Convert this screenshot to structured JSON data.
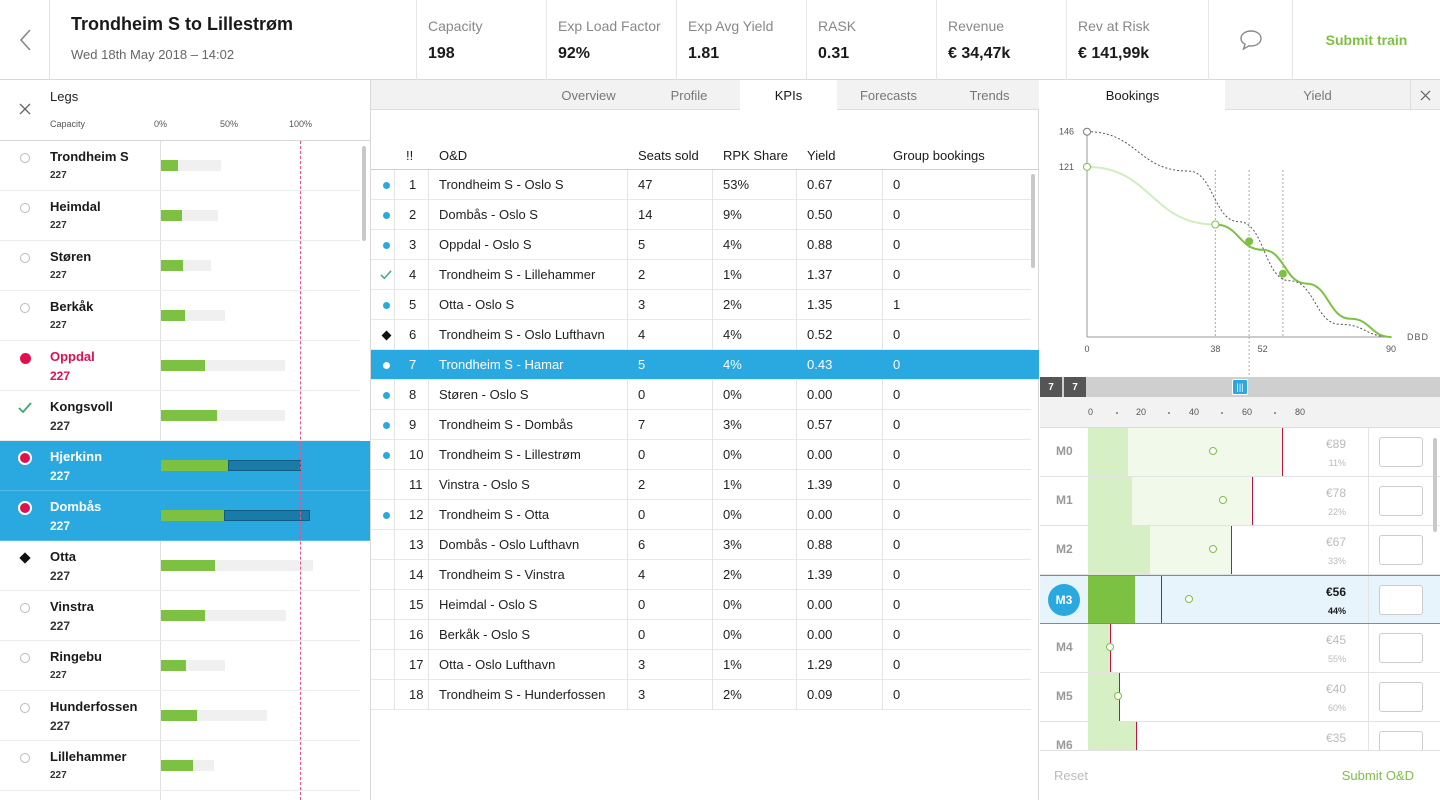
{
  "header": {
    "title": "Trondheim S to Lillestrøm",
    "date": "Wed 18th May 2018 – 14:02",
    "kpis": [
      {
        "label": "Capacity",
        "value": "198"
      },
      {
        "label": "Exp Load Factor",
        "value": "92%"
      },
      {
        "label": "Exp Avg Yield",
        "value": "1.81"
      },
      {
        "label": "RASK",
        "value": "0.31"
      },
      {
        "label": "Revenue",
        "value": "€ 34,47k"
      },
      {
        "label": "Rev at Risk",
        "value": "€ 141,99k"
      }
    ],
    "submit_label": "Submit train",
    "icons": {
      "back": "chevron-left-icon",
      "comment": "speech-bubble-icon"
    }
  },
  "legs": {
    "title": "Legs",
    "capacity_label": "Capacity",
    "scale": [
      "0%",
      "50%",
      "100%"
    ],
    "colors": {
      "fill": "#7dc142",
      "selected": "#2aa8e0",
      "warning": "#e0104f",
      "overbook": "#1a7aa8"
    },
    "items": [
      {
        "name": "Trondheim S",
        "capacity": "227",
        "icon": "circle-outline",
        "state": "normal",
        "fill": 0.12,
        "track": 0.43
      },
      {
        "name": "Heimdal",
        "capacity": "227",
        "icon": "circle-outline",
        "state": "normal",
        "fill": 0.15,
        "track": 0.41
      },
      {
        "name": "Støren",
        "capacity": "227",
        "icon": "circle-outline",
        "state": "normal",
        "fill": 0.16,
        "track": 0.36
      },
      {
        "name": "Berkåk",
        "capacity": "227",
        "icon": "circle-outline",
        "state": "normal",
        "fill": 0.17,
        "track": 0.46
      },
      {
        "name": "Oppdal",
        "capacity": "227",
        "icon": "dot-red",
        "state": "red",
        "fill": 0.32,
        "track": 0.89
      },
      {
        "name": "Kongsvoll",
        "capacity": "227",
        "icon": "check",
        "state": "big",
        "fill": 0.4,
        "track": 0.89
      },
      {
        "name": "Hjerkinn",
        "capacity": "227",
        "icon": "dot-red-ring",
        "state": "sel",
        "fill": 0.48,
        "dark": 0.58
      },
      {
        "name": "Dombås",
        "capacity": "227",
        "icon": "dot-red-ring",
        "state": "sel",
        "fill": 0.45,
        "dark": 0.69
      },
      {
        "name": "Otta",
        "capacity": "227",
        "icon": "diamond",
        "state": "big",
        "fill": 0.39,
        "track": 1.09
      },
      {
        "name": "Vinstra",
        "capacity": "227",
        "icon": "circle-outline",
        "state": "big",
        "fill": 0.32,
        "track": 0.9
      },
      {
        "name": "Ringebu",
        "capacity": "227",
        "icon": "circle-outline",
        "state": "normal",
        "fill": 0.18,
        "track": 0.46
      },
      {
        "name": "Hunderfossen",
        "capacity": "227",
        "icon": "circle-outline",
        "state": "big",
        "fill": 0.26,
        "track": 0.76
      },
      {
        "name": "Lillehammer",
        "capacity": "227",
        "icon": "circle-outline",
        "state": "normal",
        "fill": 0.23,
        "track": 0.38
      }
    ]
  },
  "tabs": [
    {
      "label": "Overview"
    },
    {
      "label": "Profile"
    },
    {
      "label": "KPIs",
      "active": true
    },
    {
      "label": "Forecasts"
    },
    {
      "label": "Trends"
    }
  ],
  "table": {
    "headers": {
      "flag": "!!",
      "od": "O&D",
      "seats": "Seats sold",
      "rpk": "RPK Share",
      "yield": "Yield",
      "group": "Group bookings"
    },
    "rows": [
      {
        "ind": "dot",
        "n": "1",
        "od": "Trondheim S - Oslo S",
        "seats": "47",
        "rpk": "53%",
        "yield": "0.67",
        "group": "0"
      },
      {
        "ind": "dot",
        "n": "2",
        "od": "Dombås - Oslo S",
        "seats": "14",
        "rpk": "9%",
        "yield": "0.50",
        "group": "0"
      },
      {
        "ind": "dot",
        "n": "3",
        "od": "Oppdal - Oslo S",
        "seats": "5",
        "rpk": "4%",
        "yield": "0.88",
        "group": "0"
      },
      {
        "ind": "check",
        "n": "4",
        "od": "Trondheim S - Lillehammer",
        "seats": "2",
        "rpk": "1%",
        "yield": "1.37",
        "group": "0"
      },
      {
        "ind": "dot",
        "n": "5",
        "od": "Otta - Oslo S",
        "seats": "3",
        "rpk": "2%",
        "yield": "1.35",
        "group": "1"
      },
      {
        "ind": "diamond",
        "n": "6",
        "od": "Trondheim S - Oslo Lufthavn",
        "seats": "4",
        "rpk": "4%",
        "yield": "0.52",
        "group": "0"
      },
      {
        "ind": "dot",
        "n": "7",
        "od": "Trondheim S - Hamar",
        "seats": "5",
        "rpk": "4%",
        "yield": "0.43",
        "group": "0",
        "selected": true
      },
      {
        "ind": "dot",
        "n": "8",
        "od": "Støren - Oslo S",
        "seats": "0",
        "rpk": "0%",
        "yield": "0.00",
        "group": "0"
      },
      {
        "ind": "dot",
        "n": "9",
        "od": "Trondheim S - Dombås",
        "seats": "7",
        "rpk": "3%",
        "yield": "0.57",
        "group": "0"
      },
      {
        "ind": "dot",
        "n": "10",
        "od": "Trondheim S - Lillestrøm",
        "seats": "0",
        "rpk": "0%",
        "yield": "0.00",
        "group": "0"
      },
      {
        "ind": "",
        "n": "11",
        "od": "Vinstra - Oslo S",
        "seats": "2",
        "rpk": "1%",
        "yield": "1.39",
        "group": "0"
      },
      {
        "ind": "dot",
        "n": "12",
        "od": "Trondheim S - Otta",
        "seats": "0",
        "rpk": "0%",
        "yield": "0.00",
        "group": "0"
      },
      {
        "ind": "",
        "n": "13",
        "od": "Dombås - Oslo Lufthavn",
        "seats": "6",
        "rpk": "3%",
        "yield": "0.88",
        "group": "0"
      },
      {
        "ind": "",
        "n": "14",
        "od": "Trondheim S - Vinstra",
        "seats": "4",
        "rpk": "2%",
        "yield": "1.39",
        "group": "0"
      },
      {
        "ind": "",
        "n": "15",
        "od": "Heimdal - Oslo S",
        "seats": "0",
        "rpk": "0%",
        "yield": "0.00",
        "group": "0"
      },
      {
        "ind": "",
        "n": "16",
        "od": "Berkåk - Oslo S",
        "seats": "0",
        "rpk": "0%",
        "yield": "0.00",
        "group": "0"
      },
      {
        "ind": "",
        "n": "17",
        "od": "Otta - Oslo Lufthavn",
        "seats": "3",
        "rpk": "1%",
        "yield": "1.29",
        "group": "0"
      },
      {
        "ind": "",
        "n": "18",
        "od": "Trondheim S - Hunderfossen",
        "seats": "3",
        "rpk": "2%",
        "yield": "0.09",
        "group": "0"
      }
    ]
  },
  "right": {
    "tabs": [
      {
        "label": "Bookings",
        "active": true
      },
      {
        "label": "Yield"
      }
    ],
    "chart_data": {
      "type": "line",
      "xlabel": "DBD",
      "xticks": [
        "0",
        "38",
        "52",
        "90"
      ],
      "yticks": [
        "146",
        "121"
      ],
      "xlim": [
        0,
        90
      ],
      "ylim": [
        0,
        160
      ],
      "series": [
        {
          "style": "dotted",
          "points": [
            [
              0,
              146
            ],
            [
              30,
              118
            ],
            [
              45,
              82
            ],
            [
              60,
              40
            ],
            [
              75,
              9
            ],
            [
              90,
              0
            ]
          ]
        },
        {
          "style": "green",
          "points": [
            [
              0,
              121
            ],
            [
              38,
              80
            ],
            [
              52,
              62
            ],
            [
              65,
              38
            ],
            [
              78,
              13
            ],
            [
              90,
              0
            ]
          ]
        }
      ],
      "markers": [
        {
          "x": 0,
          "y": 146,
          "kind": "grey-open"
        },
        {
          "x": 0,
          "y": 121,
          "kind": "green-open"
        },
        {
          "x": 38,
          "y": 80,
          "kind": "green-open"
        },
        {
          "x": 48,
          "y": 68,
          "kind": "green-filled"
        },
        {
          "x": 58,
          "y": 45,
          "kind": "green-filled"
        }
      ],
      "guides": [
        38,
        48,
        58
      ]
    },
    "dbd": {
      "left": [
        "7",
        "7"
      ],
      "handle_label": "|||",
      "position": 0.5
    },
    "scale": [
      "0",
      "20",
      "40",
      "60",
      "80"
    ],
    "classes": [
      {
        "name": "M0",
        "price": "€89",
        "pct": "11%",
        "light": 194,
        "green": 40,
        "redline": 194,
        "circle": 125
      },
      {
        "name": "M1",
        "price": "€78",
        "pct": "22%",
        "light": 164,
        "green": 44,
        "redline": 164,
        "circle": 135
      },
      {
        "name": "M2",
        "price": "€67",
        "pct": "33%",
        "light": 143,
        "green": 62,
        "redline": 143,
        "circle": 125
      },
      {
        "name": "M3",
        "price": "€56",
        "pct": "44%",
        "light": 0,
        "green": 47,
        "redline": 73,
        "circle": 101,
        "selected": true
      },
      {
        "name": "M4",
        "price": "€45",
        "pct": "55%",
        "light": 0,
        "green": 22,
        "redline": 22,
        "circle": 22
      },
      {
        "name": "M5",
        "price": "€40",
        "pct": "60%",
        "light": 0,
        "green": 31,
        "redline": 31,
        "circle": 30
      },
      {
        "name": "M6",
        "price": "€35",
        "pct": "",
        "light": 0,
        "green": 48,
        "redline": 48,
        "circle": 47
      }
    ],
    "reset_label": "Reset",
    "submit_label": "Submit O&D"
  }
}
